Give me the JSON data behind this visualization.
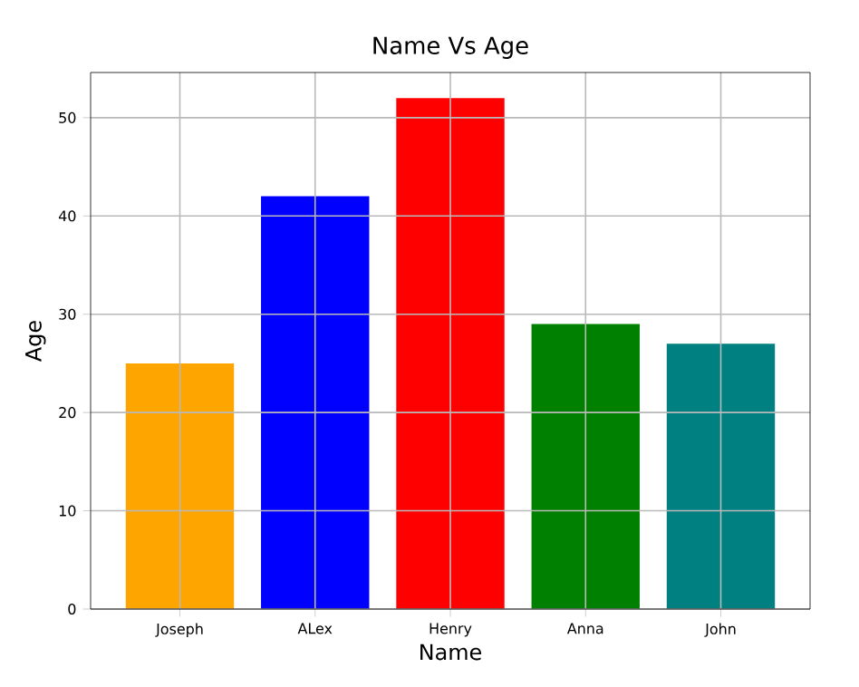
{
  "chart_data": {
    "type": "bar",
    "title": "Name Vs Age",
    "xlabel": "Name",
    "ylabel": "Age",
    "categories": [
      "Joseph",
      "ALex",
      "Henry",
      "Anna",
      "John"
    ],
    "values": [
      25,
      42,
      52,
      29,
      27
    ],
    "colors": [
      "#ffa500",
      "#0000ff",
      "#ff0000",
      "#008000",
      "#008080"
    ],
    "ylim": [
      0,
      54.6
    ],
    "yticks": [
      0,
      10,
      20,
      30,
      40,
      50
    ],
    "grid": true
  }
}
